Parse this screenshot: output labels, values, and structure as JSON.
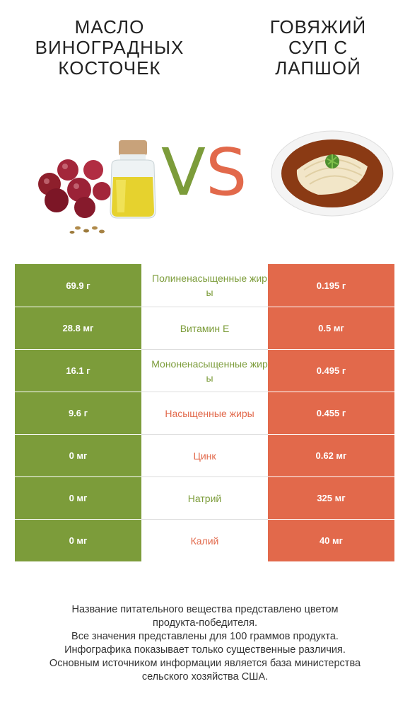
{
  "titles": {
    "left": "Масло виноградных косточек",
    "right": "Говяжий суп с лапшой"
  },
  "vs": {
    "v": "V",
    "s": "S"
  },
  "colors": {
    "left_accent": "#7c9c3a",
    "right_accent": "#e2694b"
  },
  "rows": [
    {
      "left": "69.9 г",
      "label": "Полиненасыщенные жиры",
      "right": "0.195 г",
      "winner": "left"
    },
    {
      "left": "28.8 мг",
      "label": "Витамин E",
      "right": "0.5 мг",
      "winner": "left"
    },
    {
      "left": "16.1 г",
      "label": "Мононенасыщенные жиры",
      "right": "0.495 г",
      "winner": "left"
    },
    {
      "left": "9.6 г",
      "label": "Насыщенные жиры",
      "right": "0.455 г",
      "winner": "right"
    },
    {
      "left": "0 мг",
      "label": "Цинк",
      "right": "0.62 мг",
      "winner": "right"
    },
    {
      "left": "0 мг",
      "label": "Натрий",
      "right": "325 мг",
      "winner": "left"
    },
    {
      "left": "0 мг",
      "label": "Калий",
      "right": "40 мг",
      "winner": "right"
    }
  ],
  "footer": [
    "Название питательного вещества представлено цветом",
    "продукта-победителя.",
    "Все значения представлены для 100 граммов продукта.",
    "Инфографика показывает только существенные различия.",
    "Основным источником информации является база министерства",
    "сельского хозяйства США."
  ]
}
